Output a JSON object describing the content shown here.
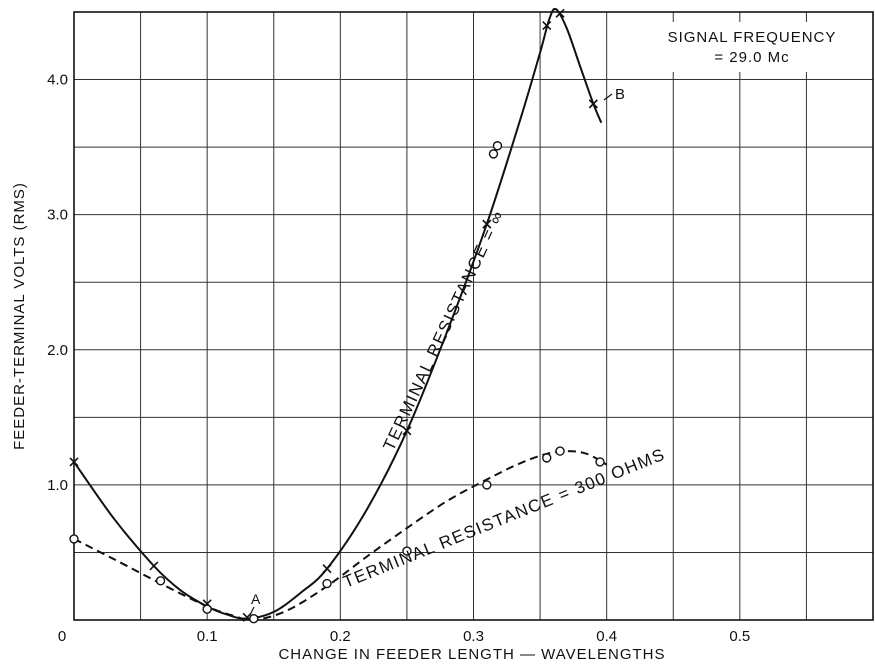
{
  "chart_data": {
    "type": "line",
    "title": "",
    "xlabel": "CHANGE IN FEEDER LENGTH — WAVELENGTHS",
    "ylabel": "FEEDER-TERMINAL VOLTS (RMS)",
    "xlim": [
      0,
      0.6
    ],
    "ylim": [
      0,
      4.5
    ],
    "grid": true,
    "x_ticks": [
      {
        "value": 0,
        "label": "0"
      },
      {
        "value": 0.1,
        "label": "0.1"
      },
      {
        "value": 0.2,
        "label": "0.2"
      },
      {
        "value": 0.3,
        "label": "0.3"
      },
      {
        "value": 0.4,
        "label": "0.4"
      },
      {
        "value": 0.5,
        "label": "0.5"
      }
    ],
    "y_ticks": [
      {
        "value": 1.0,
        "label": "1.0"
      },
      {
        "value": 2.0,
        "label": "2.0"
      },
      {
        "value": 3.0,
        "label": "3.0"
      },
      {
        "value": 4.0,
        "label": "4.0"
      }
    ],
    "series": [
      {
        "name": "TERMINAL RESISTANCE = ∞",
        "style": "solid",
        "marker": "x",
        "color": "#111111",
        "points": [
          {
            "x": 0.0,
            "y": 1.17
          },
          {
            "x": 0.06,
            "y": 0.4
          },
          {
            "x": 0.1,
            "y": 0.12
          },
          {
            "x": 0.13,
            "y": 0.02
          },
          {
            "x": 0.19,
            "y": 0.38
          },
          {
            "x": 0.25,
            "y": 1.4
          },
          {
            "x": 0.31,
            "y": 2.93
          },
          {
            "x": 0.355,
            "y": 4.4
          },
          {
            "x": 0.365,
            "y": 4.49
          },
          {
            "x": 0.39,
            "y": 3.82
          }
        ],
        "curve": [
          [
            0.0,
            1.17
          ],
          [
            0.03,
            0.75
          ],
          [
            0.06,
            0.4
          ],
          [
            0.08,
            0.22
          ],
          [
            0.1,
            0.1
          ],
          [
            0.115,
            0.04
          ],
          [
            0.13,
            0.01
          ],
          [
            0.15,
            0.06
          ],
          [
            0.17,
            0.2
          ],
          [
            0.19,
            0.38
          ],
          [
            0.22,
            0.82
          ],
          [
            0.25,
            1.4
          ],
          [
            0.28,
            2.13
          ],
          [
            0.31,
            2.93
          ],
          [
            0.335,
            3.7
          ],
          [
            0.35,
            4.2
          ],
          [
            0.357,
            4.45
          ],
          [
            0.362,
            4.52
          ],
          [
            0.37,
            4.38
          ],
          [
            0.38,
            4.1
          ],
          [
            0.39,
            3.82
          ],
          [
            0.396,
            3.68
          ]
        ]
      },
      {
        "name": "TERMINAL RESISTANCE = 300 OHMS",
        "style": "dashed",
        "marker": "o",
        "color": "#111111",
        "points": [
          {
            "x": 0.0,
            "y": 0.6
          },
          {
            "x": 0.065,
            "y": 0.29
          },
          {
            "x": 0.1,
            "y": 0.08
          },
          {
            "x": 0.135,
            "y": 0.01
          },
          {
            "x": 0.19,
            "y": 0.27
          },
          {
            "x": 0.25,
            "y": 0.51
          },
          {
            "x": 0.31,
            "y": 1.0
          },
          {
            "x": 0.355,
            "y": 1.2
          },
          {
            "x": 0.365,
            "y": 1.25
          },
          {
            "x": 0.395,
            "y": 1.17
          }
        ],
        "curve": [
          [
            0.0,
            0.6
          ],
          [
            0.03,
            0.45
          ],
          [
            0.065,
            0.27
          ],
          [
            0.1,
            0.1
          ],
          [
            0.12,
            0.03
          ],
          [
            0.135,
            0.0
          ],
          [
            0.16,
            0.07
          ],
          [
            0.19,
            0.25
          ],
          [
            0.22,
            0.47
          ],
          [
            0.25,
            0.68
          ],
          [
            0.28,
            0.88
          ],
          [
            0.31,
            1.04
          ],
          [
            0.335,
            1.16
          ],
          [
            0.355,
            1.23
          ],
          [
            0.37,
            1.25
          ],
          [
            0.385,
            1.23
          ],
          [
            0.4,
            1.15
          ]
        ]
      },
      {
        "name": "",
        "style": "none",
        "marker": "o",
        "color": "#111111",
        "points": [
          {
            "x": 0.315,
            "y": 3.45
          },
          {
            "x": 0.318,
            "y": 3.51
          }
        ],
        "curve": []
      }
    ],
    "labels": {
      "series_1": "TERMINAL RESISTANCE = ∞",
      "series_2": "TERMINAL RESISTANCE = 300 OHMS",
      "point_a": "A",
      "point_b": "B",
      "freq_line1": "SIGNAL FREQUENCY",
      "freq_line2": "= 29.0 Mc"
    }
  }
}
